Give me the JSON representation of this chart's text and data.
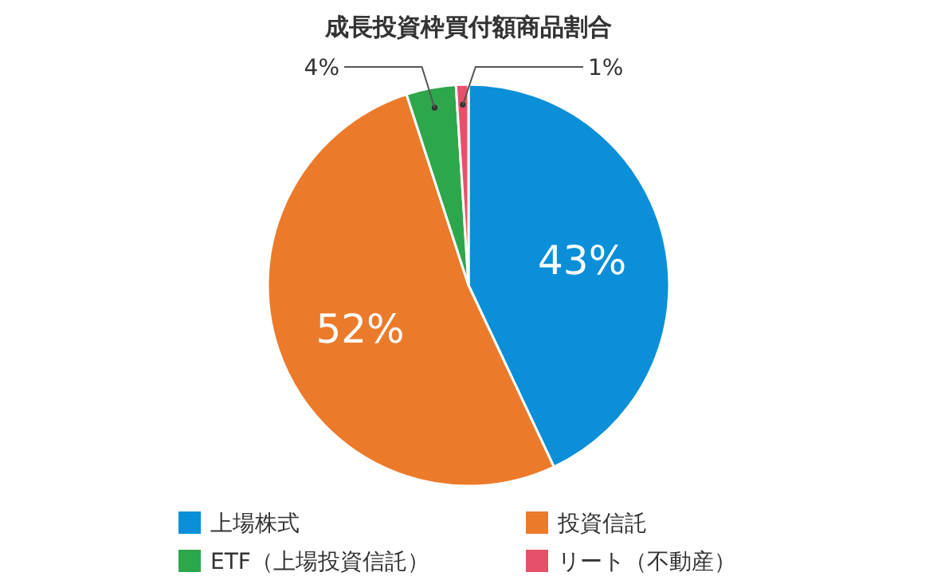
{
  "chart_data": {
    "type": "pie",
    "title": "成長投資枠買付額商品割合",
    "categories": [
      "上場株式",
      "投資信託",
      "ETF（上場投資信託）",
      "リート（不動産）"
    ],
    "values": [
      43,
      52,
      4,
      1
    ],
    "colors": [
      "#0a8fd8",
      "#ec7a2b",
      "#2ea64b",
      "#e7506a"
    ],
    "value_labels": [
      "43%",
      "52%",
      "4%",
      "1%"
    ],
    "legend": "bottom"
  }
}
